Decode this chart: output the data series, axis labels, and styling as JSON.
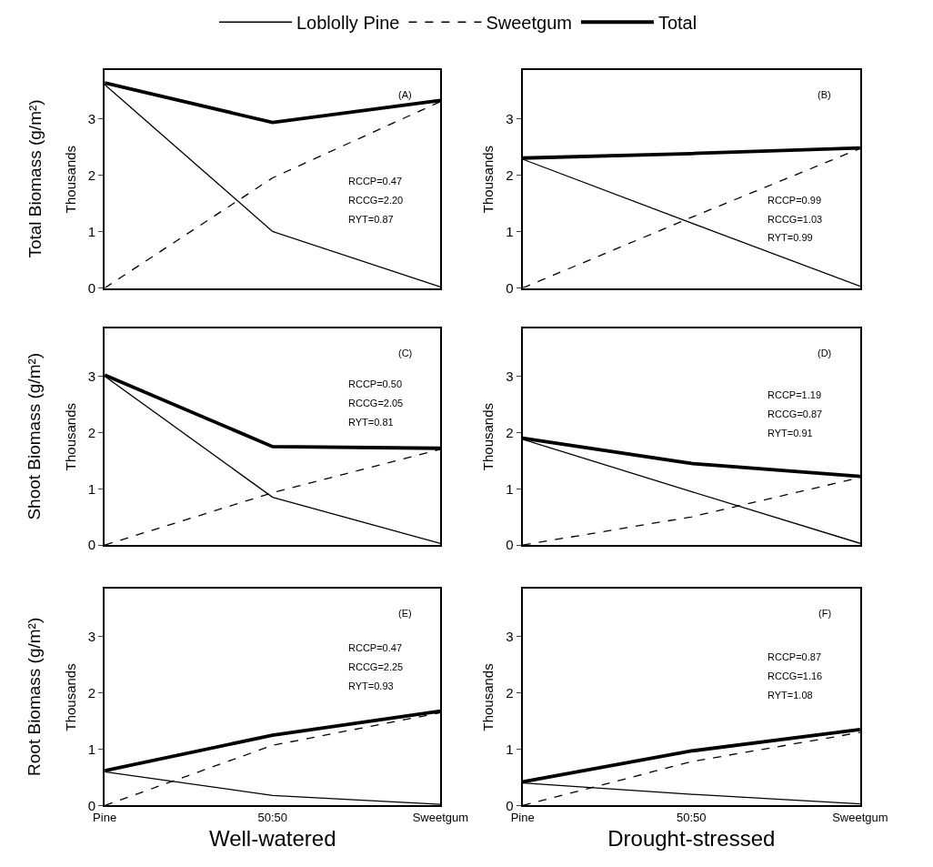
{
  "chart_data": [
    {
      "type": "line",
      "categories": [
        null,
        null,
        null
      ],
      "ylabel": "Thousands",
      "ylim": [
        0,
        3.85
      ],
      "yticks": [
        0,
        1,
        2,
        3
      ],
      "tick_labels": "y",
      "legend": "top",
      "series": [
        {
          "name": "Loblolly Pine",
          "color": "#000000",
          "line_style": "solid",
          "values": [
            3.6,
            1.0,
            0.02
          ]
        },
        {
          "name": "Sweetgum",
          "color": "#000000",
          "line_style": "dashed",
          "values": [
            0,
            1.95,
            3.3
          ]
        },
        {
          "name": "Total",
          "color": "#000000",
          "line_style": "solid",
          "values": [
            3.63,
            2.93,
            3.32
          ]
        }
      ],
      "annotations": [
        "(A)",
        "RCCP=0.47",
        "RCCG=2.20",
        "RYT=0.87",
        "Total Biomass (g/m²)"
      ]
    },
    {
      "type": "line",
      "categories": [
        null,
        null,
        null
      ],
      "ylabel": "Thousands",
      "ylim": [
        0,
        3.85
      ],
      "yticks": [
        0,
        1,
        2,
        3
      ],
      "tick_labels": "y",
      "series": [
        {
          "color": "#000000",
          "line_style": "solid",
          "values": [
            2.28,
            1.15,
            0.03
          ]
        },
        {
          "color": "#000000",
          "line_style": "dashed",
          "values": [
            0,
            1.25,
            2.47
          ]
        },
        {
          "color": "#000000",
          "line_style": "solid",
          "values": [
            2.3,
            2.38,
            2.48
          ]
        }
      ],
      "annotations": [
        "(B)",
        "RCCP=0.99",
        "RCCG=1.03",
        "RYT=0.99"
      ]
    },
    {
      "type": "line",
      "categories": [
        null,
        null,
        null
      ],
      "ylabel": "Thousands",
      "ylim": [
        0,
        3.85
      ],
      "yticks": [
        0,
        1,
        2,
        3
      ],
      "tick_labels": "y",
      "series": [
        {
          "color": "#000000",
          "line_style": "solid",
          "values": [
            3.0,
            0.85,
            0.03
          ]
        },
        {
          "color": "#000000",
          "line_style": "dashed",
          "values": [
            0,
            0.93,
            1.7
          ]
        },
        {
          "color": "#000000",
          "line_style": "solid",
          "values": [
            3.02,
            1.75,
            1.72
          ]
        }
      ],
      "annotations": [
        "(C)",
        "RCCP=0.50",
        "RCCG=2.05",
        "RYT=0.81",
        "Shoot Biomass (g/m²)"
      ]
    },
    {
      "type": "line",
      "categories": [
        null,
        null,
        null
      ],
      "ylabel": "Thousands",
      "ylim": [
        0,
        3.85
      ],
      "yticks": [
        0,
        1,
        2,
        3
      ],
      "tick_labels": "y",
      "series": [
        {
          "color": "#000000",
          "line_style": "solid",
          "values": [
            1.88,
            0.95,
            0.03
          ]
        },
        {
          "color": "#000000",
          "line_style": "dashed",
          "values": [
            0,
            0.5,
            1.2
          ]
        },
        {
          "color": "#000000",
          "line_style": "solid",
          "values": [
            1.9,
            1.45,
            1.22
          ]
        }
      ],
      "annotations": [
        "(D)",
        "RCCP=1.19",
        "RCCG=0.87",
        "RYT=0.91"
      ]
    },
    {
      "type": "line",
      "categories": [
        "Pine",
        "50:50",
        "Sweetgum"
      ],
      "xlabel": "Well-watered",
      "ylabel": "Thousands",
      "ylim": [
        0,
        3.85
      ],
      "yticks": [
        0,
        1,
        2,
        3
      ],
      "series": [
        {
          "color": "#000000",
          "line_style": "solid",
          "values": [
            0.6,
            0.18,
            0.02
          ]
        },
        {
          "color": "#000000",
          "line_style": "dashed",
          "values": [
            0,
            1.07,
            1.65
          ]
        },
        {
          "color": "#000000",
          "line_style": "solid",
          "values": [
            0.62,
            1.25,
            1.68
          ]
        }
      ],
      "annotations": [
        "(E)",
        "RCCP=0.47",
        "RCCG=2.25",
        "RYT=0.93",
        "Root Biomass (g/m²)"
      ]
    },
    {
      "type": "line",
      "categories": [
        "Pine",
        "50:50",
        "Sweetgum"
      ],
      "xlabel": "Drought-stressed",
      "ylabel": "Thousands",
      "ylim": [
        0,
        3.85
      ],
      "yticks": [
        0,
        1,
        2,
        3
      ],
      "series": [
        {
          "color": "#000000",
          "line_style": "solid",
          "values": [
            0.4,
            0.2,
            0.03
          ]
        },
        {
          "color": "#000000",
          "line_style": "dashed",
          "values": [
            0,
            0.78,
            1.3
          ]
        },
        {
          "color": "#000000",
          "line_style": "solid",
          "values": [
            0.42,
            0.97,
            1.35
          ]
        }
      ],
      "annotations": [
        "(F)",
        "RCCP=0.87",
        "RCCG=1.16",
        "RYT=1.08"
      ]
    }
  ]
}
